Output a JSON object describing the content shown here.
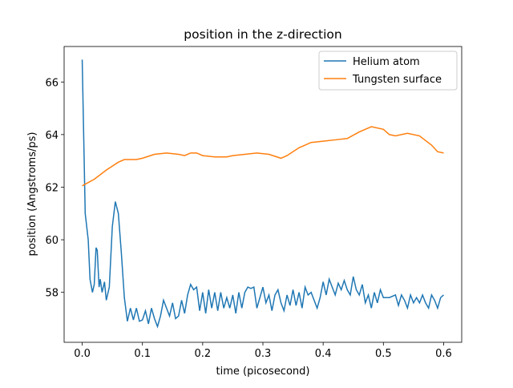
{
  "chart_data": {
    "type": "line",
    "title": "position in the z-direction",
    "xlabel": "time (picosecond)",
    "ylabel": "position (Angstroms/ps)",
    "legend": "upper right",
    "xlim": [
      -0.03,
      0.63
    ],
    "ylim": [
      56.1,
      67.35
    ],
    "xticks": [
      {
        "value": 0,
        "label": "0.0"
      },
      0.1,
      0.2,
      0.3,
      0.4,
      0.5,
      0.6
    ],
    "yticks": [
      58,
      60,
      62,
      64,
      66
    ],
    "series": [
      {
        "name": "Helium atom",
        "color": "#1f77b4",
        "x": [
          0,
          0.005,
          0.01,
          0.013,
          0.017,
          0.02,
          0.023,
          0.025,
          0.028,
          0.03,
          0.033,
          0.037,
          0.04,
          0.045,
          0.05,
          0.055,
          0.06,
          0.065,
          0.07,
          0.075,
          0.08,
          0.085,
          0.09,
          0.095,
          0.1,
          0.105,
          0.11,
          0.115,
          0.12,
          0.125,
          0.13,
          0.135,
          0.14,
          0.145,
          0.15,
          0.155,
          0.16,
          0.165,
          0.17,
          0.175,
          0.18,
          0.185,
          0.19,
          0.195,
          0.2,
          0.205,
          0.21,
          0.215,
          0.22,
          0.225,
          0.23,
          0.235,
          0.24,
          0.245,
          0.25,
          0.255,
          0.26,
          0.265,
          0.27,
          0.275,
          0.28,
          0.285,
          0.29,
          0.295,
          0.3,
          0.305,
          0.31,
          0.315,
          0.32,
          0.325,
          0.33,
          0.335,
          0.34,
          0.345,
          0.35,
          0.355,
          0.36,
          0.365,
          0.37,
          0.375,
          0.38,
          0.385,
          0.39,
          0.395,
          0.4,
          0.405,
          0.41,
          0.415,
          0.42,
          0.425,
          0.43,
          0.435,
          0.44,
          0.445,
          0.45,
          0.455,
          0.46,
          0.465,
          0.47,
          0.475,
          0.48,
          0.485,
          0.49,
          0.495,
          0.5,
          0.51,
          0.52,
          0.525,
          0.53,
          0.535,
          0.54,
          0.545,
          0.55,
          0.555,
          0.56,
          0.565,
          0.57,
          0.575,
          0.58,
          0.585,
          0.59,
          0.595,
          0.6
        ],
        "values": [
          66.85,
          61,
          60,
          58.5,
          58,
          58.3,
          59.7,
          59.6,
          58.2,
          58.5,
          58,
          58.4,
          57.7,
          58.2,
          60.5,
          61.45,
          61,
          59.5,
          57.8,
          56.9,
          57.4,
          56.95,
          57.4,
          56.9,
          56.95,
          57.3,
          56.8,
          57.4,
          57,
          56.7,
          57.1,
          57.7,
          57.4,
          57.1,
          57.6,
          57,
          57.1,
          57.7,
          57.2,
          57.9,
          58.3,
          58.1,
          58.2,
          57.3,
          58,
          57.2,
          58.1,
          57.4,
          58,
          57.3,
          58,
          57.4,
          57.8,
          57.4,
          57.9,
          57.2,
          58,
          57.4,
          58,
          58.2,
          58.15,
          58.2,
          57.4,
          57.8,
          58.2,
          57.6,
          57.9,
          57.3,
          57.9,
          58.1,
          57.6,
          57.3,
          57.9,
          57.5,
          58.1,
          57.5,
          58,
          57.4,
          58.2,
          57.9,
          58,
          57.7,
          57.4,
          57.8,
          58.4,
          57.9,
          58.5,
          58.2,
          57.9,
          58.35,
          58.1,
          58.45,
          58.1,
          57.9,
          58.6,
          58.1,
          57.9,
          58.3,
          57.6,
          57.9,
          57.4,
          58,
          57.6,
          58.1,
          57.8,
          57.8,
          57.9,
          57.5,
          57.9,
          57.7,
          57.4,
          57.9,
          57.6,
          57.8,
          57.6,
          57.9,
          57.6,
          57.4,
          57.9,
          57.7,
          57.4,
          57.8,
          57.9
        ]
      },
      {
        "name": "Tungsten surface",
        "color": "#ff7f0e",
        "x": [
          0,
          0.02,
          0.04,
          0.06,
          0.07,
          0.09,
          0.1,
          0.12,
          0.14,
          0.16,
          0.17,
          0.18,
          0.19,
          0.2,
          0.22,
          0.24,
          0.25,
          0.27,
          0.29,
          0.31,
          0.33,
          0.34,
          0.36,
          0.38,
          0.4,
          0.42,
          0.44,
          0.46,
          0.48,
          0.5,
          0.51,
          0.52,
          0.54,
          0.56,
          0.58,
          0.59,
          0.6
        ],
        "values": [
          62.05,
          62.3,
          62.65,
          62.95,
          63.05,
          63.05,
          63.1,
          63.25,
          63.3,
          63.25,
          63.2,
          63.3,
          63.3,
          63.2,
          63.15,
          63.15,
          63.2,
          63.25,
          63.3,
          63.25,
          63.1,
          63.2,
          63.5,
          63.7,
          63.75,
          63.8,
          63.85,
          64.1,
          64.3,
          64.2,
          64,
          63.95,
          64.05,
          63.95,
          63.6,
          63.35,
          63.3
        ]
      }
    ]
  }
}
